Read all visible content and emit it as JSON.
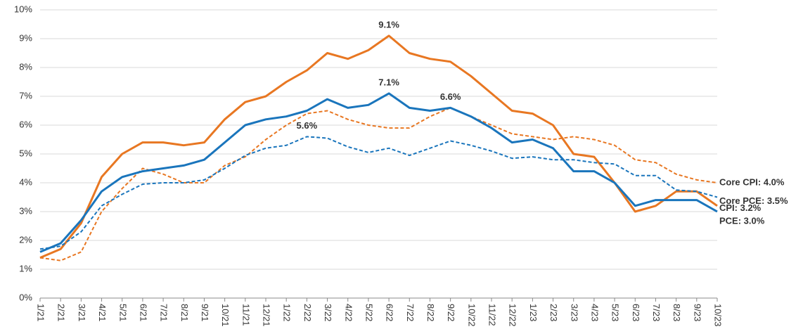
{
  "chart_data": {
    "type": "line",
    "categories": [
      "1/21",
      "2/21",
      "3/21",
      "4/21",
      "5/21",
      "6/21",
      "7/21",
      "8/21",
      "9/21",
      "10/21",
      "11/21",
      "12/21",
      "1/22",
      "2/22",
      "3/22",
      "4/22",
      "5/22",
      "6/22",
      "7/22",
      "8/22",
      "9/22",
      "10/22",
      "11/22",
      "12/22",
      "1/23",
      "2/23",
      "3/23",
      "4/23",
      "5/23",
      "6/23",
      "7/23",
      "8/23",
      "9/23",
      "10/23"
    ],
    "series": [
      {
        "color": "#e87722",
        "dashed": false,
        "end_label": "CPI: 3.2%",
        "peak_label": {
          "x": "6/22",
          "label": "9.1%"
        },
        "values": [
          1.4,
          1.7,
          2.6,
          4.2,
          5.0,
          5.4,
          5.4,
          5.3,
          5.4,
          6.2,
          6.8,
          7.0,
          7.5,
          7.9,
          8.5,
          8.3,
          8.6,
          9.1,
          8.5,
          8.3,
          8.2,
          7.7,
          7.1,
          6.5,
          6.4,
          6.0,
          5.0,
          4.9,
          4.0,
          3.0,
          3.2,
          3.7,
          3.7,
          3.2
        ]
      },
      {
        "color": "#e87722",
        "dashed": true,
        "end_label": "Core CPI: 4.0%",
        "peak_label": {
          "x": "9/22",
          "label": "6.6%"
        },
        "values": [
          1.4,
          1.3,
          1.6,
          3.0,
          3.8,
          4.5,
          4.3,
          4.0,
          4.0,
          4.6,
          4.9,
          5.5,
          6.0,
          6.4,
          6.5,
          6.2,
          6.0,
          5.9,
          5.9,
          6.3,
          6.6,
          6.3,
          6.0,
          5.7,
          5.6,
          5.5,
          5.6,
          5.5,
          5.3,
          4.8,
          4.7,
          4.3,
          4.1,
          4.0
        ]
      },
      {
        "color": "#1a75bc",
        "dashed": false,
        "end_label": "PCE: 3.0%",
        "peak_label": {
          "x": "6/22",
          "label": "7.1%"
        },
        "values": [
          1.6,
          1.9,
          2.7,
          3.7,
          4.2,
          4.4,
          4.5,
          4.6,
          4.8,
          5.4,
          6.0,
          6.2,
          6.3,
          6.5,
          6.9,
          6.6,
          6.7,
          7.1,
          6.6,
          6.5,
          6.6,
          6.3,
          5.9,
          5.4,
          5.5,
          5.2,
          4.4,
          4.4,
          4.0,
          3.2,
          3.4,
          3.4,
          3.4,
          3.0
        ]
      },
      {
        "color": "#1a75bc",
        "dashed": true,
        "end_label": "Core PCE: 3.5%",
        "peak_label": {
          "x": "2/22",
          "label": "5.6%"
        },
        "values": [
          1.7,
          1.8,
          2.3,
          3.2,
          3.6,
          3.95,
          4.0,
          4.0,
          4.1,
          4.5,
          4.95,
          5.2,
          5.3,
          5.6,
          5.55,
          5.25,
          5.05,
          5.2,
          4.95,
          5.2,
          5.45,
          5.3,
          5.1,
          4.85,
          4.9,
          4.8,
          4.8,
          4.7,
          4.65,
          4.25,
          4.25,
          3.75,
          3.7,
          3.5
        ]
      }
    ],
    "ylim": [
      0,
      10
    ],
    "yticks": [
      {
        "value": 0,
        "label": "0%"
      },
      {
        "value": 1,
        "label": "1%"
      },
      {
        "value": 2,
        "label": "2%"
      },
      {
        "value": 3,
        "label": "3%"
      },
      {
        "value": 4,
        "label": "4%"
      },
      {
        "value": 5,
        "label": "5%"
      },
      {
        "value": 6,
        "label": "6%"
      },
      {
        "value": 7,
        "label": "7%"
      },
      {
        "value": 8,
        "label": "8%"
      },
      {
        "value": 9,
        "label": "9%"
      },
      {
        "value": 10,
        "label": "10%"
      }
    ],
    "grid": true
  }
}
